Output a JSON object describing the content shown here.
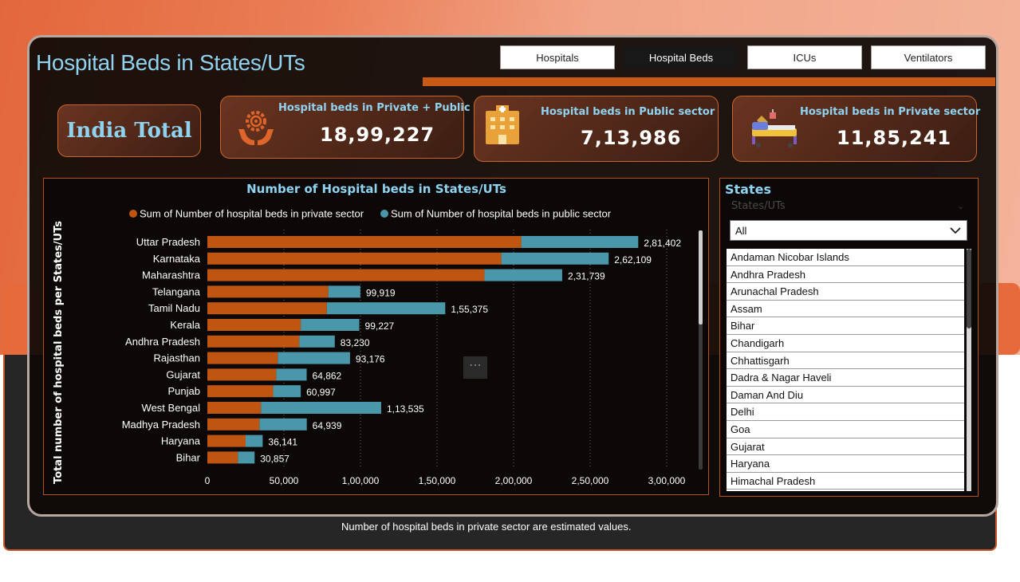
{
  "page": {
    "title": "Hospital Beds in States/UTs"
  },
  "tabs": [
    {
      "label": "Hospitals",
      "active": false
    },
    {
      "label": "Hospital Beds",
      "active": true
    },
    {
      "label": "ICUs",
      "active": false
    },
    {
      "label": "Ventilators",
      "active": false
    }
  ],
  "kpis": {
    "india_total": "India Total",
    "private_public": {
      "label": "Hospital beds in Private + Public",
      "value": "18,99,227"
    },
    "public": {
      "label": "Hospital beds in Public sector",
      "value": "7,13,986"
    },
    "private": {
      "label": "Hospital beds in Private sector",
      "value": "11,85,241"
    }
  },
  "colors": {
    "private": "#c05512",
    "public": "#4a97a9",
    "accent": "#8fd3f0"
  },
  "chart_data": {
    "type": "bar",
    "orientation": "horizontal",
    "stacked": true,
    "title": "Number of Hospital beds in States/UTs",
    "ylabel": "Total number of hospital beds per States/UTs",
    "xlim": [
      0,
      300000
    ],
    "x_ticks": [
      {
        "value": 0,
        "label": "0"
      },
      {
        "value": 50000,
        "label": "50,000"
      },
      {
        "value": 100000,
        "label": "1,00,000"
      },
      {
        "value": 150000,
        "label": "1,50,000"
      },
      {
        "value": 200000,
        "label": "2,00,000"
      },
      {
        "value": 250000,
        "label": "2,50,000"
      },
      {
        "value": 300000,
        "label": "3,00,000"
      }
    ],
    "legend": [
      {
        "label": "Sum of Number of hospital beds in private sector"
      },
      {
        "label": "Sum of Number of hospital beds in public sector"
      }
    ],
    "categories": [
      "Uttar Pradesh",
      "Karnataka",
      "Maharashtra",
      "Telangana",
      "Tamil Nadu",
      "Kerala",
      "Andhra Pradesh",
      "Rajasthan",
      "Gujarat",
      "Punjab",
      "West Bengal",
      "Madhya Pradesh",
      "Haryana",
      "Bihar"
    ],
    "series": [
      {
        "name": "Sum of Number of hospital beds in private sector",
        "values": [
          205000,
          192000,
          181000,
          79000,
          78000,
          61000,
          60000,
          46000,
          45000,
          43000,
          35000,
          34000,
          25000,
          20000
        ]
      },
      {
        "name": "Sum of Number of hospital beds in public sector",
        "values": [
          76402,
          70109,
          50739,
          20919,
          77375,
          38227,
          23230,
          47176,
          19862,
          17997,
          78535,
          30939,
          11141,
          10857
        ]
      }
    ],
    "total_labels": [
      "2,81,402",
      "2,62,109",
      "2,31,739",
      "99,919",
      "1,55,375",
      "99,227",
      "83,230",
      "93,176",
      "64,862",
      "60,997",
      "1,13,535",
      "64,939",
      "36,141",
      "30,857"
    ]
  },
  "states_slicer": {
    "title": "States",
    "placeholder": "States/UTs",
    "selected": "All",
    "items": [
      "Andaman Nicobar Islands",
      "Andhra Pradesh",
      "Arunachal Pradesh",
      "Assam",
      "Bihar",
      "Chandigarh",
      "Chhattisgarh",
      "Dadra & Nagar Haveli",
      "Daman And Diu",
      "Delhi",
      "Goa",
      "Gujarat",
      "Haryana",
      "Himachal Pradesh"
    ]
  },
  "footnote": "Number of hospital beds in private sector are estimated values."
}
